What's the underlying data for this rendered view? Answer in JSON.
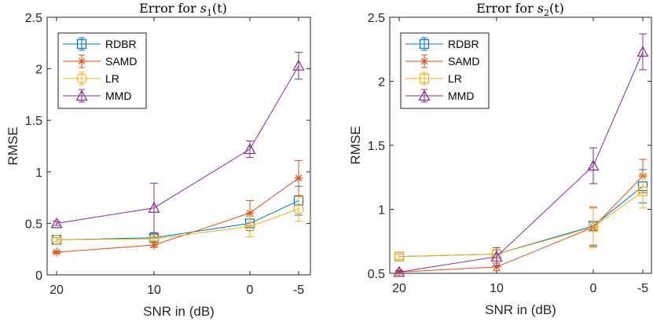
{
  "chart_data": [
    {
      "type": "line",
      "title_prefix": "Error for ",
      "title_var": "s",
      "title_sub": "1",
      "title_arg": "(t)",
      "xlabel": "SNR in (dB)",
      "ylabel": "RMSE",
      "categories": [
        "20",
        "10",
        "0",
        "-5"
      ],
      "ylim": [
        0,
        2.5
      ],
      "yticks": [
        "0",
        "0.5",
        "1",
        "1.5",
        "2",
        "2.5"
      ],
      "series": [
        {
          "name": "RDBR",
          "color": "#0072BD",
          "marker": "square",
          "values": [
            0.34,
            0.36,
            0.5,
            0.72
          ],
          "err": [
            0.02,
            0.03,
            0.07,
            0.14
          ]
        },
        {
          "name": "SAMD",
          "color": "#D95319",
          "marker": "star",
          "values": [
            0.22,
            0.29,
            0.6,
            0.94
          ],
          "err": [
            0.01,
            0.02,
            0.12,
            0.17
          ]
        },
        {
          "name": "LR",
          "color": "#EDB120",
          "marker": "circle",
          "values": [
            0.34,
            0.35,
            0.47,
            0.64
          ],
          "err": [
            0.02,
            0.02,
            0.1,
            0.12
          ]
        },
        {
          "name": "MMD",
          "color": "#7E2F8E",
          "marker": "triangle",
          "values": [
            0.5,
            0.65,
            1.22,
            2.03
          ],
          "err": [
            0.02,
            0.24,
            0.08,
            0.13
          ]
        }
      ]
    },
    {
      "type": "line",
      "title_prefix": "Error for ",
      "title_var": "s",
      "title_sub": "2",
      "title_arg": "(t)",
      "xlabel": "SNR in (dB)",
      "ylabel": "RMSE",
      "categories": [
        "20",
        "10",
        "0",
        "-5"
      ],
      "ylim": [
        0.5,
        2.5
      ],
      "yticks": [
        "0.5",
        "1",
        "1.5",
        "2",
        "2.5"
      ],
      "series": [
        {
          "name": "RDBR",
          "color": "#0072BD",
          "marker": "square",
          "values": [
            0.63,
            0.65,
            0.87,
            1.18
          ],
          "err": [
            0.02,
            0.03,
            0.15,
            0.13
          ]
        },
        {
          "name": "SAMD",
          "color": "#D95319",
          "marker": "star",
          "values": [
            0.51,
            0.55,
            0.86,
            1.26
          ],
          "err": [
            0.01,
            0.03,
            0.15,
            0.13
          ]
        },
        {
          "name": "LR",
          "color": "#EDB120",
          "marker": "square",
          "values": [
            0.63,
            0.65,
            0.86,
            1.14
          ],
          "err": [
            0.02,
            0.03,
            0.16,
            0.13
          ]
        },
        {
          "name": "MMD",
          "color": "#7E2F8E",
          "marker": "triangle",
          "values": [
            0.51,
            0.63,
            1.34,
            2.23
          ],
          "err": [
            0.01,
            0.07,
            0.14,
            0.14
          ]
        }
      ]
    }
  ]
}
